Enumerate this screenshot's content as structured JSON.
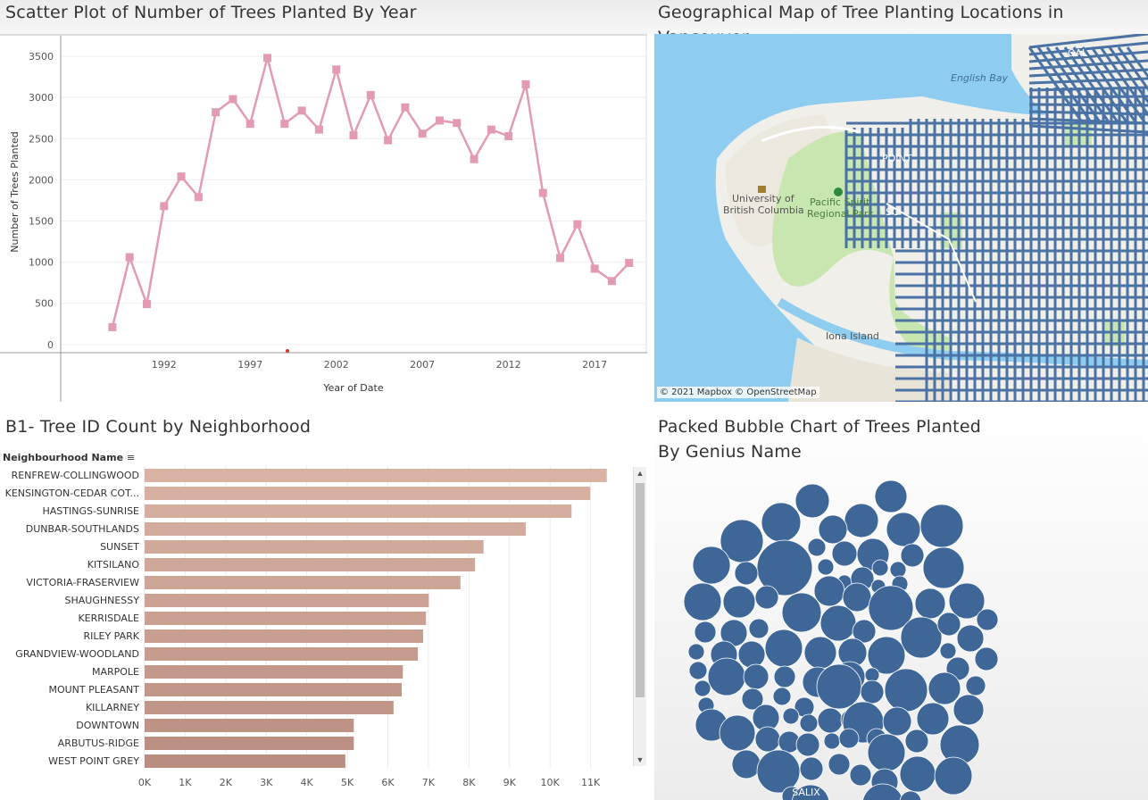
{
  "panels": {
    "scatter_title": "Scatter Plot of Number of Trees Planted By Year",
    "map_title": "Geographical Map of Tree Planting Locations in Vancouver",
    "bar_title": "B1- Tree ID Count by Neighborhood",
    "bubble_title_line1": "Packed Bubble Chart of Trees Planted",
    "bubble_title_line2": "By Genius Name"
  },
  "map": {
    "attribution": "© 2021 Mapbox © OpenStreetMap",
    "labels": {
      "english_bay": "English Bay",
      "ubc_1": "University of",
      "ubc_2": "British Columbia",
      "pacific_1": "Pacific Spirit",
      "pacific_2": "Regional Park",
      "iona": "Iona Island",
      "point": "POINT",
      "coal": "OAL",
      "sc": "SC"
    },
    "colors": {
      "water": "#8ecdf0",
      "land": "#f1efe9",
      "park": "#c8e6b0",
      "streets": "#4a72a5"
    }
  },
  "bar": {
    "header": "Neighbourhood Name",
    "sort_icon": "sort-icon"
  },
  "chart_data": [
    {
      "type": "line",
      "title": "Scatter Plot of Number of Trees Planted By Year",
      "xlabel": "Year of Date",
      "ylabel": "Number of Trees Planted",
      "x_ticks": [
        1992,
        1997,
        2002,
        2007,
        2012,
        2017
      ],
      "y_ticks": [
        0,
        500,
        1000,
        1500,
        2000,
        2500,
        3000,
        3500
      ],
      "xlim": [
        1986,
        2020
      ],
      "ylim": [
        -100,
        3750
      ],
      "color": "#e39bb5",
      "x": [
        1989,
        1990,
        1991,
        1992,
        1993,
        1994,
        1995,
        1996,
        1997,
        1998,
        1999,
        2000,
        2001,
        2002,
        2003,
        2004,
        2005,
        2006,
        2007,
        2008,
        2009,
        2010,
        2011,
        2012,
        2013,
        2014,
        2015,
        2016,
        2017,
        2018,
        2019
      ],
      "values": [
        210,
        1060,
        490,
        1680,
        2040,
        1790,
        2820,
        2980,
        2680,
        3480,
        2680,
        2840,
        2610,
        3340,
        2540,
        3030,
        2480,
        2880,
        2560,
        2720,
        2690,
        2250,
        2610,
        2530,
        3160,
        1840,
        1050,
        1460,
        920,
        770,
        990
      ]
    },
    {
      "type": "bar",
      "title": "B1- Tree ID Count by Neighborhood",
      "ylabel": "Neighbourhood Name",
      "categories": [
        "RENFREW-COLLINGWOOD",
        "KENSINGTON-CEDAR COT...",
        "HASTINGS-SUNRISE",
        "DUNBAR-SOUTHLANDS",
        "SUNSET",
        "KITSILANO",
        "VICTORIA-FRASERVIEW",
        "SHAUGHNESSY",
        "KERRISDALE",
        "RILEY PARK",
        "GRANDVIEW-WOODLAND",
        "MARPOLE",
        "MOUNT PLEASANT",
        "KILLARNEY",
        "DOWNTOWN",
        "ARBUTUS-RIDGE",
        "WEST POINT GREY"
      ],
      "values": [
        11400,
        10990,
        10530,
        9400,
        8360,
        8150,
        7790,
        7010,
        6940,
        6870,
        6740,
        6370,
        6340,
        6140,
        5160,
        5160,
        4950
      ],
      "x_ticks": [
        "0K",
        "1K",
        "2K",
        "3K",
        "4K",
        "5K",
        "6K",
        "7K",
        "8K",
        "9K",
        "10K",
        "11K"
      ],
      "xlim": [
        0,
        12000
      ],
      "color_start": "#d9b2a4",
      "color_end": "#b98e80"
    },
    {
      "type": "bubble",
      "title": "Packed Bubble Chart of Trees Planted By Genius Name",
      "color": "#3e6798",
      "labels": [
        "SALIX"
      ]
    }
  ]
}
